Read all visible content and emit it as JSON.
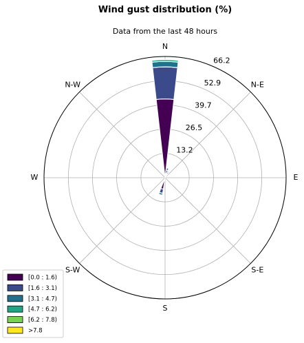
{
  "chart_data": {
    "type": "windrose",
    "title": "Wind gust distribution (%)",
    "subtitle": "Data from the last 48 hours",
    "directions": [
      "N",
      "N-E",
      "E",
      "S-E",
      "S",
      "S-W",
      "W",
      "N-W"
    ],
    "radial_ticks": [
      "13.2",
      "26.5",
      "39.7",
      "52.9",
      "66.2"
    ],
    "radial_tick_values": [
      13.2,
      26.5,
      39.7,
      52.9,
      66.2
    ],
    "rmax": 66.2,
    "grid": true,
    "legend_placement": "lower-left",
    "legend": [
      "[0.0 : 1.6)",
      "[1.6 : 3.1)",
      "[3.1 : 4.7)",
      "[4.7 : 6.2)",
      "[6.2 : 7.8)",
      ">7.8"
    ],
    "colors": [
      "#440154",
      "#3b4a8a",
      "#21718c",
      "#22a584",
      "#7ad151",
      "#fde725"
    ],
    "sectors": [
      {
        "angle_deg": 0,
        "cumulative": [
          43.0,
          60.5,
          63.5,
          64.5
        ]
      },
      {
        "angle_deg": 15,
        "cumulative": [
          2.4,
          4.2,
          5.4
        ]
      },
      {
        "angle_deg": 30,
        "cumulative": [
          2.4,
          3.2,
          3.8
        ]
      },
      {
        "angle_deg": 195,
        "cumulative": [
          6.3,
          8.6,
          9.6
        ]
      }
    ]
  }
}
